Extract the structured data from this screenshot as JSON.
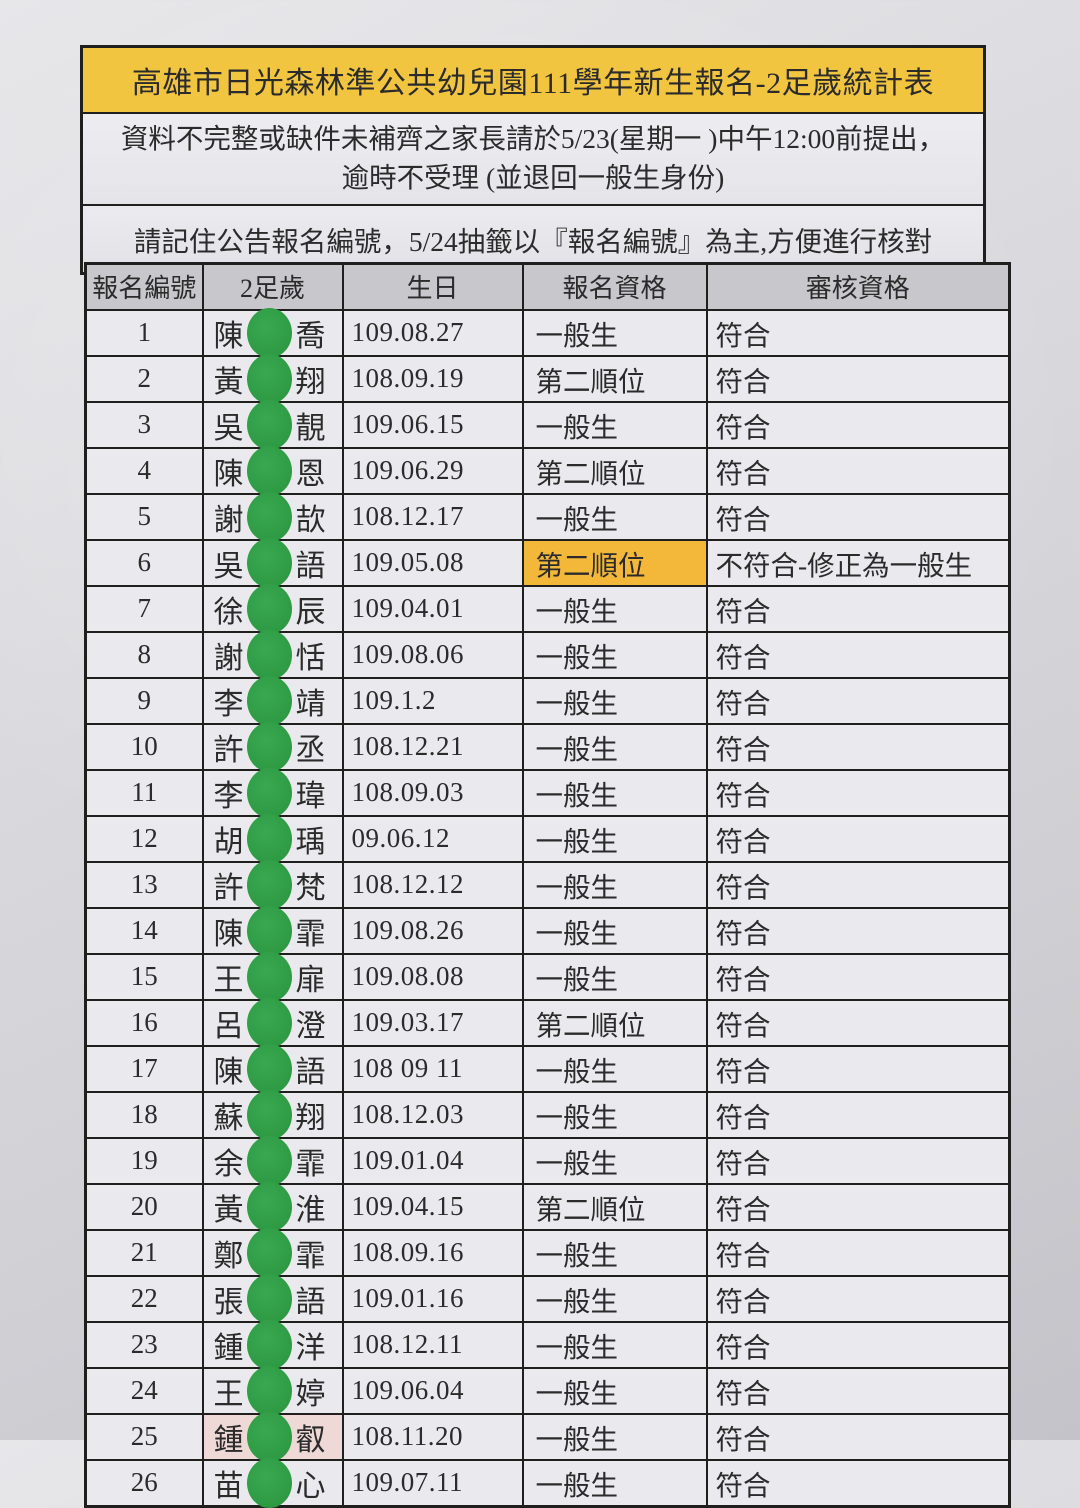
{
  "page": {
    "title": "高雄市日光森林準公共幼兒園111學年新生報名-2足歲統計表"
  },
  "notices": {
    "notice1_line1": "資料不完整或缺件未補齊之家長請於5/23(星期一 )中午12:00前提出，",
    "notice1_line2": "逾時不受理 (並退回一般生身份)",
    "notice2": "請記住公告報名編號，5/24抽籤以『報名編號』為主,方便進行核對"
  },
  "table": {
    "headers": [
      "報名編號",
      "2足歲",
      "生日",
      "報名資格",
      "審核資格"
    ],
    "rows": [
      {
        "no": "1",
        "surname": "陳",
        "given": "喬",
        "birthday": "109.08.27",
        "qualification": "一般生",
        "review": "符合"
      },
      {
        "no": "2",
        "surname": "黃",
        "given": "翔",
        "birthday": "108.09.19",
        "qualification": "第二順位",
        "review": "符合"
      },
      {
        "no": "3",
        "surname": "吳",
        "given": "靚",
        "birthday": "109.06.15",
        "qualification": "一般生",
        "review": "符合"
      },
      {
        "no": "4",
        "surname": "陳",
        "given": "恩",
        "birthday": "109.06.29",
        "qualification": "第二順位",
        "review": "符合"
      },
      {
        "no": "5",
        "surname": "謝",
        "given": "欯",
        "birthday": "108.12.17",
        "qualification": "一般生",
        "review": "符合"
      },
      {
        "no": "6",
        "surname": "吳",
        "given": "語",
        "birthday": "109.05.08",
        "qualification": "第二順位",
        "review": "不符合-修正為一般生",
        "qual_hl": true
      },
      {
        "no": "7",
        "surname": "徐",
        "given": "辰",
        "birthday": "109.04.01",
        "qualification": "一般生",
        "review": "符合"
      },
      {
        "no": "8",
        "surname": "謝",
        "given": "恬",
        "birthday": "109.08.06",
        "qualification": "一般生",
        "review": "符合"
      },
      {
        "no": "9",
        "surname": "李",
        "given": "靖",
        "birthday": "109.1.2",
        "qualification": "一般生",
        "review": "符合"
      },
      {
        "no": "10",
        "surname": "許",
        "given": "丞",
        "birthday": "108.12.21",
        "qualification": "一般生",
        "review": "符合"
      },
      {
        "no": "11",
        "surname": "李",
        "given": "瑋",
        "birthday": "108.09.03",
        "qualification": "一般生",
        "review": "符合"
      },
      {
        "no": "12",
        "surname": "胡",
        "given": "瑀",
        "birthday": "09.06.12",
        "qualification": "一般生",
        "review": "符合"
      },
      {
        "no": "13",
        "surname": "許",
        "given": "梵",
        "birthday": "108.12.12",
        "qualification": "一般生",
        "review": "符合"
      },
      {
        "no": "14",
        "surname": "陳",
        "given": "霏",
        "birthday": "109.08.26",
        "qualification": "一般生",
        "review": "符合"
      },
      {
        "no": "15",
        "surname": "王",
        "given": "扉",
        "birthday": "109.08.08",
        "qualification": "一般生",
        "review": "符合"
      },
      {
        "no": "16",
        "surname": "呂",
        "given": "澄",
        "birthday": "109.03.17",
        "qualification": "第二順位",
        "review": "符合"
      },
      {
        "no": "17",
        "surname": "陳",
        "given": "語",
        "birthday": "108 09 11",
        "qualification": "一般生",
        "review": "符合"
      },
      {
        "no": "18",
        "surname": "蘇",
        "given": "翔",
        "birthday": "108.12.03",
        "qualification": "一般生",
        "review": "符合"
      },
      {
        "no": "19",
        "surname": "余",
        "given": "霏",
        "birthday": "109.01.04",
        "qualification": "一般生",
        "review": "符合"
      },
      {
        "no": "20",
        "surname": "黃",
        "given": "淮",
        "birthday": "109.04.15",
        "qualification": "第二順位",
        "review": "符合"
      },
      {
        "no": "21",
        "surname": "鄭",
        "given": "霏",
        "birthday": "108.09.16",
        "qualification": "一般生",
        "review": "符合"
      },
      {
        "no": "22",
        "surname": "張",
        "given": "語",
        "birthday": "109.01.16",
        "qualification": "一般生",
        "review": "符合"
      },
      {
        "no": "23",
        "surname": "鍾",
        "given": "洋",
        "birthday": "108.12.11",
        "qualification": "一般生",
        "review": "符合"
      },
      {
        "no": "24",
        "surname": "王",
        "given": "婷",
        "birthday": "109.06.04",
        "qualification": "一般生",
        "review": "符合"
      },
      {
        "no": "25",
        "surname": "鍾",
        "given": "叡",
        "birthday": "108.11.20",
        "qualification": "一般生",
        "review": "符合",
        "name_hl": true
      },
      {
        "no": "26",
        "surname": "苗",
        "given": "心",
        "birthday": "109.07.11",
        "qualification": "一般生",
        "review": "符合"
      }
    ]
  },
  "icons": {
    "name_mask": "green-circle-privacy-sticker"
  },
  "colors": {
    "title_bg": "#f2c541",
    "qual_highlight_bg": "#f3b83a",
    "name_highlight_bg": "#eed9d6",
    "dot_green": "#2f9c45",
    "header_bg": "#c7c7cc",
    "paper_bg": "#d6d6db",
    "line": "#1f1f1d"
  }
}
